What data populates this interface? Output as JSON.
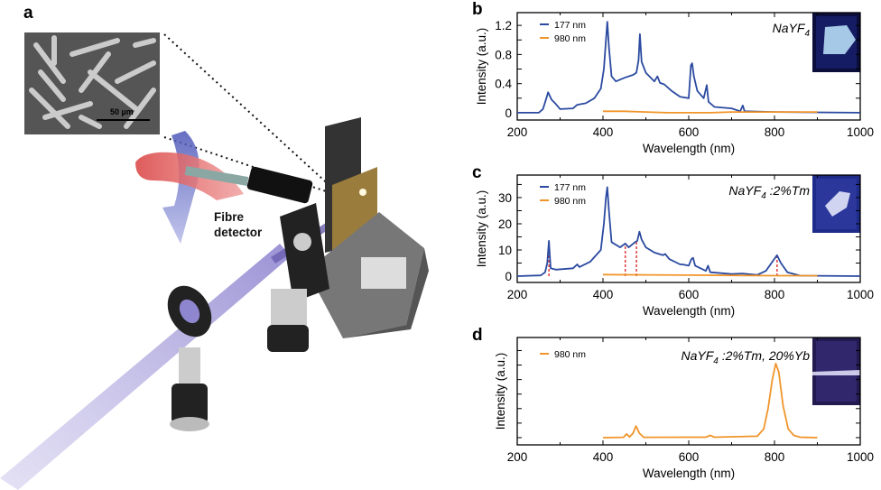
{
  "panel_labels": {
    "a": "a",
    "b": "b",
    "c": "c",
    "d": "d"
  },
  "illustration": {
    "annotation": "Fibre detector",
    "annotation_line1": "Fibre",
    "annotation_line2": "detector",
    "scale_bar": "50 µm"
  },
  "colors": {
    "series_177": "#2b4aa0",
    "series_980": "#f0952b",
    "marker": "#e03a3a"
  },
  "chart_data": [
    {
      "panel": "b",
      "type": "line",
      "xlabel": "Wavelength (nm)",
      "ylabel": "Intensity (a.u.)",
      "xlim": [
        200,
        1000
      ],
      "ylim": [
        -0.1,
        1.375
      ],
      "xticks": [
        200,
        400,
        600,
        800,
        1000
      ],
      "yticks": [
        0,
        0.4,
        0.8,
        1.2
      ],
      "ytick_labels": [
        "0",
        "0.4",
        "0.8",
        "1.2"
      ],
      "annotation": "NaYF",
      "annotation_sub": "4",
      "annotation_rest": "",
      "legend_placement": "top-left",
      "series": [
        {
          "name": "177 nm",
          "color": "#2b4aa0",
          "points": [
            [
              200,
              0
            ],
            [
              250,
              0
            ],
            [
              260,
              0.05
            ],
            [
              268,
              0.2
            ],
            [
              272,
              0.28
            ],
            [
              280,
              0.18
            ],
            [
              290,
              0.12
            ],
            [
              300,
              0.05
            ],
            [
              330,
              0.06
            ],
            [
              340,
              0.11
            ],
            [
              360,
              0.13
            ],
            [
              380,
              0.2
            ],
            [
              395,
              0.33
            ],
            [
              402,
              0.6
            ],
            [
              407,
              1.0
            ],
            [
              410,
              1.25
            ],
            [
              414,
              0.9
            ],
            [
              420,
              0.5
            ],
            [
              430,
              0.43
            ],
            [
              450,
              0.48
            ],
            [
              470,
              0.52
            ],
            [
              478,
              0.55
            ],
            [
              483,
              0.72
            ],
            [
              486,
              1.08
            ],
            [
              490,
              0.7
            ],
            [
              500,
              0.55
            ],
            [
              520,
              0.43
            ],
            [
              527,
              0.5
            ],
            [
              533,
              0.41
            ],
            [
              543,
              0.39
            ],
            [
              560,
              0.3
            ],
            [
              580,
              0.22
            ],
            [
              600,
              0.2
            ],
            [
              605,
              0.65
            ],
            [
              608,
              0.68
            ],
            [
              612,
              0.5
            ],
            [
              620,
              0.3
            ],
            [
              635,
              0.2
            ],
            [
              642,
              0.38
            ],
            [
              646,
              0.15
            ],
            [
              660,
              0.08
            ],
            [
              700,
              0.06
            ],
            [
              720,
              0.02
            ],
            [
              726,
              0.1
            ],
            [
              730,
              0.02
            ],
            [
              800,
              0.01
            ],
            [
              1000,
              0
            ]
          ]
        },
        {
          "name": "980 nm",
          "color": "#f0952b",
          "points": [
            [
              400,
              0.02
            ],
            [
              450,
              0.02
            ],
            [
              500,
              0.01
            ],
            [
              550,
              0
            ],
            [
              600,
              0
            ],
            [
              650,
              0
            ],
            [
              700,
              0.01
            ],
            [
              750,
              0.01
            ],
            [
              800,
              0.01
            ],
            [
              850,
              0.01
            ],
            [
              900,
              0.01
            ]
          ]
        }
      ],
      "markers": []
    },
    {
      "panel": "c",
      "type": "line",
      "xlabel": "Wavelength (nm)",
      "ylabel": "Intensity (a.u.)",
      "xlim": [
        200,
        1000
      ],
      "ylim": [
        -2.4,
        38.6
      ],
      "xticks": [
        200,
        400,
        600,
        800,
        1000
      ],
      "yticks": [
        0,
        10,
        20,
        30
      ],
      "ytick_labels": [
        "0",
        "10",
        "20",
        "30"
      ],
      "annotation": "NaYF",
      "annotation_sub": "4",
      "annotation_rest": ":2%Tm",
      "legend_placement": "top-left",
      "series": [
        {
          "name": "177 nm",
          "color": "#2b4aa0",
          "points": [
            [
              200,
              0
            ],
            [
              255,
              0.3
            ],
            [
              265,
              1.5
            ],
            [
              270,
              5
            ],
            [
              274,
              13.5
            ],
            [
              278,
              3
            ],
            [
              290,
              2.5
            ],
            [
              330,
              3
            ],
            [
              340,
              4.5
            ],
            [
              345,
              3.5
            ],
            [
              370,
              5.5
            ],
            [
              395,
              10
            ],
            [
              402,
              20
            ],
            [
              407,
              30
            ],
            [
              410,
              34
            ],
            [
              414,
              25
            ],
            [
              420,
              13
            ],
            [
              440,
              11
            ],
            [
              452,
              12.5
            ],
            [
              460,
              11
            ],
            [
              475,
              13
            ],
            [
              480,
              13.5
            ],
            [
              485,
              17
            ],
            [
              490,
              14
            ],
            [
              500,
              11
            ],
            [
              520,
              9
            ],
            [
              530,
              8.5
            ],
            [
              540,
              8
            ],
            [
              545,
              8.5
            ],
            [
              555,
              6.5
            ],
            [
              580,
              4.5
            ],
            [
              585,
              4.5
            ],
            [
              600,
              4
            ],
            [
              606,
              6.5
            ],
            [
              610,
              7
            ],
            [
              615,
              4
            ],
            [
              640,
              2
            ],
            [
              645,
              4
            ],
            [
              650,
              1.5
            ],
            [
              700,
              0.8
            ],
            [
              725,
              1
            ],
            [
              760,
              0.5
            ],
            [
              780,
              2
            ],
            [
              795,
              5.5
            ],
            [
              806,
              8
            ],
            [
              815,
              5
            ],
            [
              830,
              1.5
            ],
            [
              860,
              0.2
            ],
            [
              1000,
              0
            ]
          ]
        },
        {
          "name": "980 nm",
          "color": "#f0952b",
          "points": [
            [
              400,
              0.6
            ],
            [
              500,
              0.5
            ],
            [
              600,
              0.4
            ],
            [
              700,
              0.3
            ],
            [
              800,
              0.2
            ],
            [
              900,
              0.2
            ]
          ]
        }
      ],
      "markers": [
        [
          274,
          13
        ],
        [
          452,
          12
        ],
        [
          478,
          13
        ],
        [
          806,
          7.5
        ]
      ]
    },
    {
      "panel": "d",
      "type": "line",
      "xlabel": "Wavelength (nm)",
      "ylabel": "Intensity (a.u.)",
      "xlim": [
        200,
        1000
      ],
      "ylim": [
        -0.5,
        6.9
      ],
      "xticks": [
        200,
        400,
        600,
        800,
        1000
      ],
      "yticks": [
        0,
        1,
        2,
        3,
        4,
        5,
        6
      ],
      "ytick_labels": [],
      "annotation": "NaYF",
      "annotation_sub": "4",
      "annotation_rest": ":2%Tm, 20%Yb",
      "legend_placement": "top-left",
      "series": [
        {
          "name": "980 nm",
          "color": "#f0952b",
          "points": [
            [
              400,
              0
            ],
            [
              448,
              0.02
            ],
            [
              455,
              0.25
            ],
            [
              462,
              0.05
            ],
            [
              470,
              0.3
            ],
            [
              477,
              0.8
            ],
            [
              485,
              0.3
            ],
            [
              495,
              0.02
            ],
            [
              640,
              0.03
            ],
            [
              650,
              0.15
            ],
            [
              660,
              0.03
            ],
            [
              760,
              0.1
            ],
            [
              775,
              0.6
            ],
            [
              785,
              2
            ],
            [
              795,
              4
            ],
            [
              803,
              5.1
            ],
            [
              810,
              4.5
            ],
            [
              820,
              2.2
            ],
            [
              832,
              0.6
            ],
            [
              845,
              0.15
            ],
            [
              860,
              0.03
            ],
            [
              900,
              0
            ]
          ]
        }
      ],
      "markers": []
    }
  ]
}
